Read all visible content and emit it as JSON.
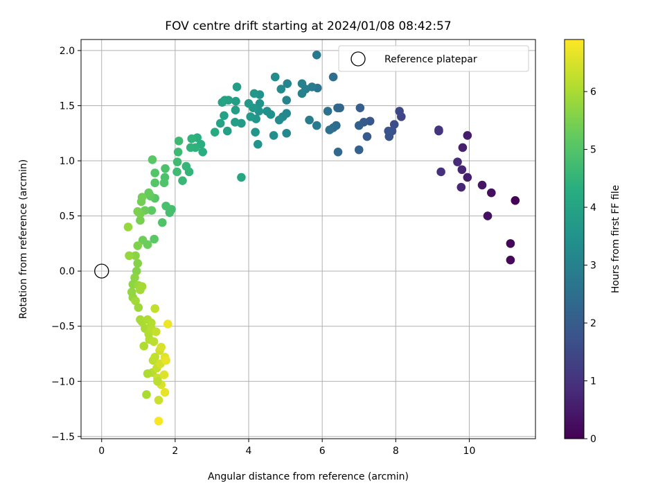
{
  "chart_data": {
    "type": "scatter",
    "title": "FOV centre drift starting at 2024/01/08 08:42:57",
    "xlabel": "Angular distance from reference (arcmin)",
    "ylabel": "Rotation from reference (arcmin)",
    "xlim": [
      -0.56,
      11.8
    ],
    "ylim": [
      -1.52,
      2.1
    ],
    "xticks": [
      0,
      2,
      4,
      6,
      8,
      10
    ],
    "yticks": [
      -1.5,
      -1.0,
      -0.5,
      0.0,
      0.5,
      1.0,
      1.5,
      2.0
    ],
    "xtick_labels": [
      "0",
      "2",
      "4",
      "6",
      "8",
      "10"
    ],
    "ytick_labels": [
      "−1.5",
      "−1.0",
      "−0.5",
      "0.0",
      "0.5",
      "1.0",
      "1.5",
      "2.0"
    ],
    "grid": true,
    "legend": {
      "placement": "top-right",
      "label": "Reference platepar"
    },
    "reference_point": {
      "x": 0.0,
      "y": 0.0
    },
    "colorbar": {
      "label": "Hours from first FF file",
      "colormap": "viridis",
      "range": [
        0,
        6.9
      ],
      "ticks": [
        0,
        1,
        2,
        3,
        4,
        5,
        6
      ],
      "tick_labels": [
        "0",
        "1",
        "2",
        "3",
        "4",
        "5",
        "6"
      ]
    },
    "points": [
      [
        11.25,
        0.64,
        0.05
      ],
      [
        11.12,
        0.25,
        0.1
      ],
      [
        11.12,
        0.1,
        0.15
      ],
      [
        10.6,
        0.71,
        0.25
      ],
      [
        10.5,
        0.5,
        0.3
      ],
      [
        10.35,
        0.78,
        0.4
      ],
      [
        9.95,
        1.23,
        0.5
      ],
      [
        9.95,
        0.85,
        0.55
      ],
      [
        9.82,
        1.12,
        0.6
      ],
      [
        9.8,
        0.92,
        0.7
      ],
      [
        9.78,
        0.76,
        0.75
      ],
      [
        9.68,
        0.99,
        0.8
      ],
      [
        9.23,
        0.9,
        0.95
      ],
      [
        9.17,
        1.28,
        1.0
      ],
      [
        9.17,
        1.27,
        1.05
      ],
      [
        8.15,
        1.4,
        1.4
      ],
      [
        8.1,
        1.45,
        1.5
      ],
      [
        7.96,
        1.33,
        1.6
      ],
      [
        7.9,
        1.27,
        1.7
      ],
      [
        7.82,
        1.22,
        1.75
      ],
      [
        7.8,
        1.27,
        1.8
      ],
      [
        7.3,
        1.36,
        1.9
      ],
      [
        7.22,
        1.22,
        1.95
      ],
      [
        7.13,
        1.35,
        2.0
      ],
      [
        7.03,
        1.48,
        2.05
      ],
      [
        7.0,
        1.32,
        2.1
      ],
      [
        7.0,
        1.1,
        2.15
      ],
      [
        6.48,
        1.48,
        2.25
      ],
      [
        6.42,
        1.48,
        2.3
      ],
      [
        6.43,
        1.08,
        2.35
      ],
      [
        6.38,
        1.32,
        2.4
      ],
      [
        6.3,
        1.3,
        2.45
      ],
      [
        6.3,
        1.76,
        2.5
      ],
      [
        6.2,
        1.28,
        2.55
      ],
      [
        6.15,
        1.45,
        2.6
      ],
      [
        5.87,
        1.66,
        2.7
      ],
      [
        5.85,
        1.96,
        2.75
      ],
      [
        5.85,
        1.32,
        2.8
      ],
      [
        5.72,
        1.67,
        2.85
      ],
      [
        5.65,
        1.37,
        2.9
      ],
      [
        5.55,
        1.65,
        2.95
      ],
      [
        5.45,
        1.61,
        3.0
      ],
      [
        5.45,
        1.7,
        3.0
      ],
      [
        5.05,
        1.7,
        3.1
      ],
      [
        5.03,
        1.55,
        3.1
      ],
      [
        5.03,
        1.43,
        3.15
      ],
      [
        5.03,
        1.25,
        3.2
      ],
      [
        4.93,
        1.4,
        3.2
      ],
      [
        4.88,
        1.65,
        3.25
      ],
      [
        4.83,
        1.37,
        3.3
      ],
      [
        4.72,
        1.76,
        3.35
      ],
      [
        4.68,
        1.23,
        3.4
      ],
      [
        4.6,
        1.42,
        3.45
      ],
      [
        4.5,
        1.45,
        3.45
      ],
      [
        4.3,
        1.6,
        3.5
      ],
      [
        4.3,
        1.52,
        3.5
      ],
      [
        4.28,
        1.45,
        3.55
      ],
      [
        4.25,
        1.15,
        3.55
      ],
      [
        4.2,
        1.38,
        3.6
      ],
      [
        4.18,
        1.26,
        3.6
      ],
      [
        4.15,
        1.61,
        3.65
      ],
      [
        4.12,
        1.48,
        3.65
      ],
      [
        4.05,
        1.4,
        3.7
      ],
      [
        4.0,
        1.52,
        3.7
      ],
      [
        3.8,
        1.34,
        3.75
      ],
      [
        3.68,
        1.67,
        3.8
      ],
      [
        3.65,
        1.54,
        3.8
      ],
      [
        3.64,
        1.46,
        3.85
      ],
      [
        3.63,
        1.35,
        3.85
      ],
      [
        3.45,
        1.55,
        3.9
      ],
      [
        3.42,
        1.27,
        3.9
      ],
      [
        3.35,
        1.55,
        3.95
      ],
      [
        3.33,
        1.41,
        3.95
      ],
      [
        3.28,
        1.53,
        4.0
      ],
      [
        3.23,
        1.34,
        4.0
      ],
      [
        3.8,
        0.85,
        4.1
      ],
      [
        3.08,
        1.26,
        4.2
      ],
      [
        2.75,
        1.08,
        4.3
      ],
      [
        2.7,
        1.15,
        4.3
      ],
      [
        2.6,
        1.21,
        4.35
      ],
      [
        2.55,
        1.12,
        4.4
      ],
      [
        2.45,
        1.2,
        4.45
      ],
      [
        2.42,
        1.12,
        4.45
      ],
      [
        2.38,
        0.9,
        4.5
      ],
      [
        2.3,
        0.95,
        4.55
      ],
      [
        2.2,
        0.82,
        4.6
      ],
      [
        2.1,
        1.18,
        4.65
      ],
      [
        2.08,
        1.08,
        4.65
      ],
      [
        2.06,
        0.99,
        4.7
      ],
      [
        2.05,
        0.9,
        4.7
      ],
      [
        1.9,
        0.56,
        4.8
      ],
      [
        1.85,
        0.53,
        4.8
      ],
      [
        1.75,
        0.59,
        4.85
      ],
      [
        1.73,
        0.93,
        4.9
      ],
      [
        1.72,
        0.85,
        4.9
      ],
      [
        1.7,
        0.8,
        4.95
      ],
      [
        1.65,
        0.44,
        4.95
      ],
      [
        1.45,
        0.89,
        5.0
      ],
      [
        1.45,
        0.8,
        5.05
      ],
      [
        1.45,
        0.66,
        5.05
      ],
      [
        1.43,
        0.29,
        5.1
      ],
      [
        1.38,
        1.01,
        5.1
      ],
      [
        1.36,
        0.55,
        5.15
      ],
      [
        1.33,
        0.68,
        5.2
      ],
      [
        1.28,
        0.71,
        5.25
      ],
      [
        1.25,
        0.24,
        5.3
      ],
      [
        1.18,
        0.55,
        5.3
      ],
      [
        1.12,
        0.28,
        5.35
      ],
      [
        1.1,
        0.67,
        5.4
      ],
      [
        1.08,
        0.63,
        5.4
      ],
      [
        1.05,
        0.52,
        5.45
      ],
      [
        1.05,
        0.46,
        5.45
      ],
      [
        0.98,
        0.54,
        5.5
      ],
      [
        0.98,
        0.23,
        5.55
      ],
      [
        0.98,
        0.07,
        5.6
      ],
      [
        0.95,
        0.0,
        5.6
      ],
      [
        0.92,
        0.14,
        5.65
      ],
      [
        0.9,
        -0.06,
        5.7
      ],
      [
        0.85,
        -0.12,
        5.7
      ],
      [
        0.82,
        -0.19,
        5.75
      ],
      [
        0.85,
        -0.24,
        5.75
      ],
      [
        0.72,
        0.4,
        5.8
      ],
      [
        0.75,
        0.14,
        5.8
      ],
      [
        1.0,
        -0.13,
        5.85
      ],
      [
        1.0,
        -0.33,
        5.85
      ],
      [
        0.92,
        -0.27,
        5.9
      ],
      [
        1.05,
        -0.17,
        5.9
      ],
      [
        1.05,
        -0.44,
        5.95
      ],
      [
        1.1,
        -0.14,
        5.95
      ],
      [
        1.1,
        -0.46,
        6.0
      ],
      [
        1.18,
        -0.52,
        6.0
      ],
      [
        1.15,
        -0.68,
        6.05
      ],
      [
        1.25,
        -0.44,
        6.05
      ],
      [
        1.28,
        -0.57,
        6.1
      ],
      [
        1.3,
        -0.62,
        6.1
      ],
      [
        1.35,
        -0.52,
        6.15
      ],
      [
        1.38,
        -0.92,
        6.15
      ],
      [
        1.4,
        -0.81,
        6.2
      ],
      [
        1.42,
        -0.64,
        6.2
      ],
      [
        1.45,
        -0.34,
        6.25
      ],
      [
        1.45,
        -0.78,
        6.25
      ],
      [
        1.48,
        -0.55,
        6.3
      ],
      [
        1.5,
        -0.88,
        6.3
      ],
      [
        1.52,
        -0.97,
        6.35
      ],
      [
        1.55,
        -1.17,
        6.35
      ],
      [
        1.58,
        -0.72,
        6.4
      ],
      [
        1.6,
        -0.84,
        6.45
      ],
      [
        1.62,
        -0.69,
        6.5
      ],
      [
        1.62,
        -1.03,
        6.5
      ],
      [
        1.7,
        -0.94,
        6.55
      ],
      [
        1.72,
        -0.78,
        6.6
      ],
      [
        1.72,
        -1.1,
        6.65
      ],
      [
        1.75,
        -0.81,
        6.7
      ],
      [
        1.8,
        -0.48,
        6.75
      ],
      [
        1.55,
        -1.36,
        6.85
      ],
      [
        1.22,
        -1.12,
        6.0
      ],
      [
        1.25,
        -0.93,
        6.05
      ],
      [
        1.35,
        -0.47,
        6.1
      ],
      [
        1.52,
        -1.0,
        6.2
      ]
    ]
  }
}
